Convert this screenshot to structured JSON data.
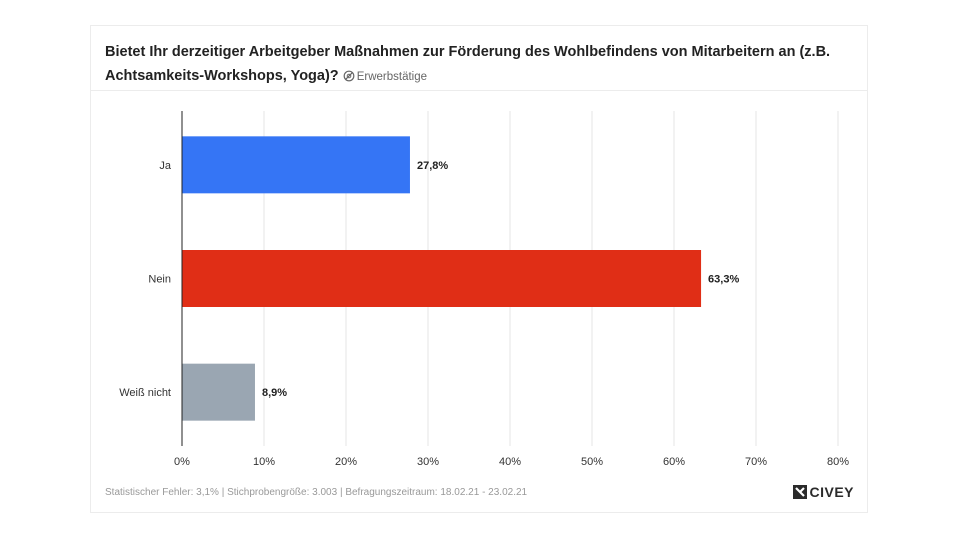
{
  "header": {
    "title": "Bietet Ihr derzeitiger Arbeitgeber Maßnahmen zur Förderung des Wohlbefindens von Mitarbeitern an (z.B. Achtsamkeits-Workshops, Yoga)?",
    "target_group": "Erwerbstätige"
  },
  "footer": {
    "text": "Statistischer Fehler: 3,1% | Stichprobengröße: 3.003 | Befragungszeitraum: 18.02.21 - 23.02.21",
    "brand": "CIVEY"
  },
  "chart_data": {
    "type": "bar",
    "orientation": "horizontal",
    "categories": [
      "Ja",
      "Nein",
      "Weiß nicht"
    ],
    "values": [
      27.8,
      63.3,
      8.9
    ],
    "value_labels": [
      "27,8%",
      "63,3%",
      "8,9%"
    ],
    "colors": [
      "#3575f5",
      "#e02e16",
      "#9aa6b2"
    ],
    "xlim": [
      0,
      80
    ],
    "xticks": [
      0,
      10,
      20,
      30,
      40,
      50,
      60,
      70,
      80
    ],
    "xtick_labels": [
      "0%",
      "10%",
      "20%",
      "30%",
      "40%",
      "50%",
      "60%",
      "70%",
      "80%"
    ],
    "grid": true
  }
}
